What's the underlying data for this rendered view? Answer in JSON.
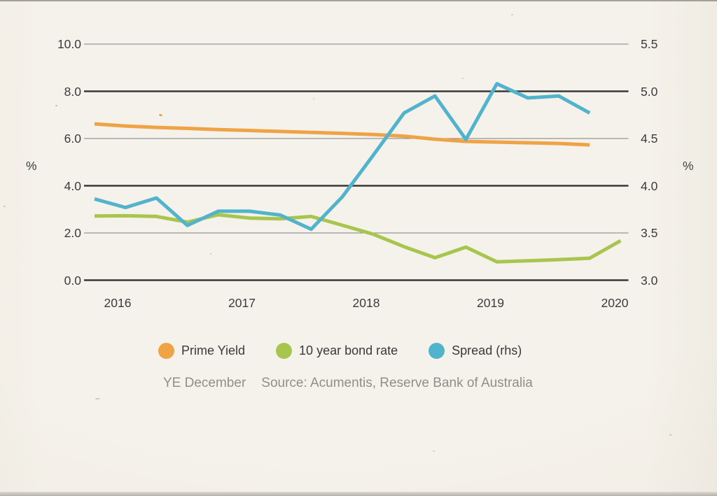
{
  "chart_data": {
    "type": "line",
    "title": "",
    "x_ticks": [
      "2016",
      "2017",
      "2018",
      "2019",
      "2020"
    ],
    "points_per_year": 4,
    "left_axis": {
      "unit": "%",
      "min": 0.0,
      "max": 10.0,
      "ticks": [
        "10.0",
        "8.0",
        "6.0",
        "4.0",
        "2.0",
        "0.0"
      ]
    },
    "right_axis": {
      "unit": "%",
      "min": 3.0,
      "max": 5.5,
      "ticks": [
        "5.5",
        "5.0",
        "4.5",
        "4.0",
        "3.5",
        "3.0"
      ]
    },
    "grid": "horizontal-only",
    "legend_position": "bottom",
    "series": [
      {
        "name": "Prime Yield",
        "axis": "left",
        "color": "#f0a345",
        "values": [
          6.62,
          6.53,
          6.47,
          6.43,
          6.38,
          6.34,
          6.3,
          6.26,
          6.22,
          6.17,
          6.1,
          5.97,
          5.88,
          5.85,
          5.82,
          5.79,
          5.73
        ]
      },
      {
        "name": "10 year bond rate",
        "axis": "left",
        "color": "#a8c64e",
        "values": [
          2.72,
          2.73,
          2.7,
          2.46,
          2.77,
          2.63,
          2.6,
          2.7,
          2.33,
          1.95,
          1.42,
          0.95,
          1.4,
          0.78,
          0.82,
          0.87,
          0.93,
          1.67
        ]
      },
      {
        "name": "Spread (rhs)",
        "axis": "right",
        "color": "#52b3cc",
        "values": [
          3.86,
          3.77,
          3.87,
          3.58,
          3.73,
          3.73,
          3.69,
          3.54,
          3.88,
          4.32,
          4.77,
          4.95,
          4.49,
          5.08,
          4.93,
          4.95,
          4.77
        ]
      }
    ],
    "footnote": "YE December",
    "source": "Source: Acumentis, Reserve Bank of Australia",
    "colors": {
      "background": "#f5f2eb",
      "grid_major": "#39393b",
      "grid_minor": "#7e7e7e",
      "axis_text": "#3b3b3d",
      "caption_text": "#918e89"
    }
  }
}
